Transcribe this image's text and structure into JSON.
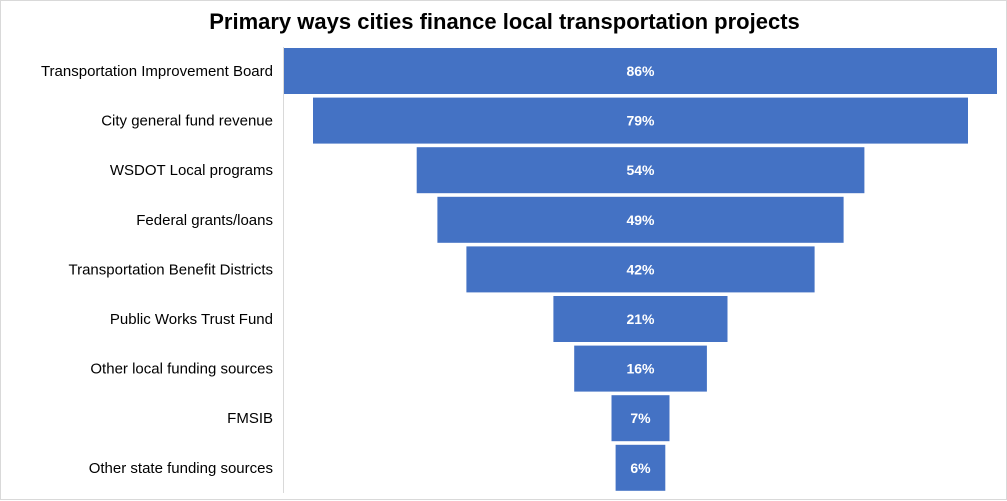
{
  "chart_data": {
    "type": "bar",
    "subtype": "funnel",
    "title": "Primary ways cities finance local transportation projects",
    "categories": [
      "Transportation Improvement Board",
      "City general fund revenue",
      "WSDOT Local programs",
      "Federal grants/loans",
      "Transportation Benefit Districts",
      "Public Works Trust Fund",
      "Other local funding sources",
      "FMSIB",
      "Other state funding sources"
    ],
    "values": [
      86,
      79,
      54,
      49,
      42,
      21,
      16,
      7,
      6
    ],
    "value_labels": [
      "86%",
      "79%",
      "54%",
      "49%",
      "42%",
      "21%",
      "16%",
      "7%",
      "6%"
    ],
    "unit": "%",
    "xlabel": "",
    "ylabel": "",
    "grid": false,
    "legend": "none",
    "bar_color": "#4472c4"
  }
}
